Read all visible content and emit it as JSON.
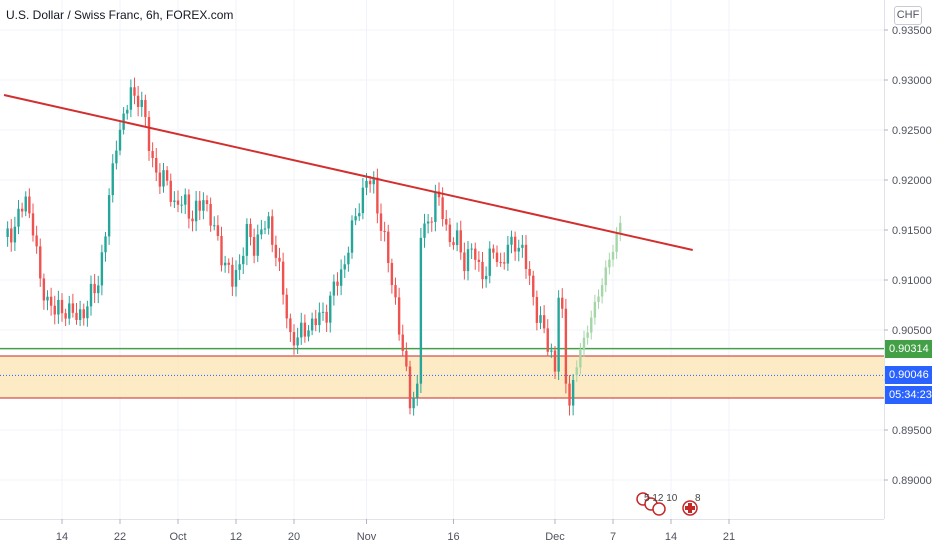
{
  "header": {
    "title": "U.S. Dollar / Swiss Franc, 6h, FOREX.com",
    "currency": "CHF"
  },
  "tags": {
    "support_level": "0.90314",
    "last_price": "0.90046",
    "countdown": "05:34:23"
  },
  "events": {
    "group_one": "5 12 10",
    "group_two": "8"
  },
  "colors": {
    "bull": "#26a69a",
    "bear": "#ef5350",
    "projection": "#a5d6a7",
    "trendline": "#d32f2f",
    "support_line": "#43a047",
    "zone_fill": "#fde7bb",
    "zone_border": "#c62828",
    "last_price_tag": "#2962ff",
    "support_tag": "#43a047"
  },
  "chart_data": {
    "type": "candlestick",
    "title": "U.S. Dollar / Swiss Franc, 6h, FOREX.com",
    "y_axis": {
      "range": [
        0.8855,
        0.9365
      ],
      "ticks": [
        "0.89000",
        "0.89500",
        "0.90000",
        "0.90500",
        "0.91000",
        "0.91500",
        "0.92000",
        "0.92500",
        "0.93000",
        "0.93500"
      ]
    },
    "x_axis": {
      "ticks": [
        {
          "label": "14",
          "slot": 16
        },
        {
          "label": "22",
          "slot": 32
        },
        {
          "label": "Oct",
          "slot": 48
        },
        {
          "label": "12",
          "slot": 64
        },
        {
          "label": "20",
          "slot": 80
        },
        {
          "label": "Nov",
          "slot": 100
        },
        {
          "label": "16",
          "slot": 124
        },
        {
          "label": "Dec",
          "slot": 152
        },
        {
          "label": "7",
          "slot": 168
        },
        {
          "label": "14",
          "slot": 184
        },
        {
          "label": "21",
          "slot": 200
        }
      ]
    },
    "anchors": [
      [
        0,
        0.9138
      ],
      [
        3,
        0.9155
      ],
      [
        6,
        0.918
      ],
      [
        8,
        0.9155
      ],
      [
        10,
        0.9095
      ],
      [
        12,
        0.9082
      ],
      [
        14,
        0.9068
      ],
      [
        17,
        0.9072
      ],
      [
        20,
        0.9062
      ],
      [
        23,
        0.9075
      ],
      [
        26,
        0.91
      ],
      [
        28,
        0.9148
      ],
      [
        31,
        0.9242
      ],
      [
        33,
        0.9258
      ],
      [
        35,
        0.929
      ],
      [
        37,
        0.9282
      ],
      [
        39,
        0.9258
      ],
      [
        41,
        0.922
      ],
      [
        43,
        0.9195
      ],
      [
        45,
        0.9205
      ],
      [
        47,
        0.917
      ],
      [
        50,
        0.9182
      ],
      [
        52,
        0.9158
      ],
      [
        55,
        0.9185
      ],
      [
        57,
        0.9158
      ],
      [
        59,
        0.914
      ],
      [
        61,
        0.9115
      ],
      [
        63,
        0.9098
      ],
      [
        65,
        0.9118
      ],
      [
        67,
        0.9145
      ],
      [
        69,
        0.9135
      ],
      [
        71,
        0.915
      ],
      [
        73,
        0.9155
      ],
      [
        75,
        0.913
      ],
      [
        77,
        0.9085
      ],
      [
        79,
        0.9045
      ],
      [
        81,
        0.904
      ],
      [
        83,
        0.9052
      ],
      [
        86,
        0.9058
      ],
      [
        89,
        0.907
      ],
      [
        92,
        0.91
      ],
      [
        94,
        0.9118
      ],
      [
        96,
        0.9148
      ],
      [
        98,
        0.9178
      ],
      [
        100,
        0.9198
      ],
      [
        102,
        0.9195
      ],
      [
        104,
        0.9155
      ],
      [
        106,
        0.9118
      ],
      [
        108,
        0.908
      ],
      [
        110,
        0.9025
      ],
      [
        112,
        0.8982
      ],
      [
        114,
        0.899
      ],
      [
        115,
        0.9145
      ],
      [
        117,
        0.9158
      ],
      [
        119,
        0.9182
      ],
      [
        121,
        0.9168
      ],
      [
        123,
        0.914
      ],
      [
        125,
        0.9138
      ],
      [
        127,
        0.912
      ],
      [
        129,
        0.913
      ],
      [
        131,
        0.9112
      ],
      [
        133,
        0.9108
      ],
      [
        135,
        0.913
      ],
      [
        137,
        0.9115
      ],
      [
        139,
        0.913
      ],
      [
        141,
        0.914
      ],
      [
        143,
        0.9128
      ],
      [
        145,
        0.91
      ],
      [
        147,
        0.9068
      ],
      [
        149,
        0.9045
      ],
      [
        151,
        0.9028
      ],
      [
        152,
        0.901
      ],
      [
        153,
        0.9085
      ],
      [
        154,
        0.906
      ],
      [
        155,
        0.9
      ],
      [
        156,
        0.8985
      ],
      [
        157,
        0.9
      ]
    ],
    "projection": {
      "from": [
        157,
        0.9005
      ],
      "to": [
        170,
        0.9155
      ]
    },
    "trendline": {
      "from_slot": 0,
      "from_value": 0.9285,
      "to_slot": 190,
      "to_value": 0.913
    },
    "support_line": 0.90314,
    "zone": {
      "top": 0.9024,
      "bottom": 0.8982
    },
    "last_price": 0.90046
  }
}
